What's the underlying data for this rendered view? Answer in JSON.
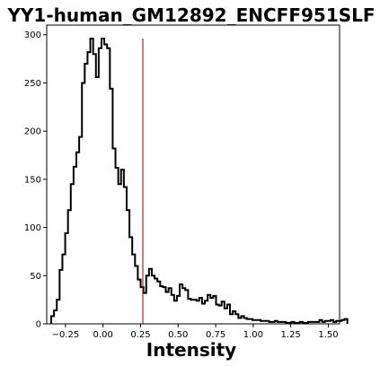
{
  "chart_data": {
    "type": "histogram",
    "title": "YY1-human_GM12892_ENCFF951SLF",
    "xlabel": "Intensity",
    "ylabel": "",
    "xlim": [
      -0.375,
      1.575
    ],
    "ylim": [
      0,
      310
    ],
    "x_ticks": [
      -0.25,
      0.0,
      0.25,
      0.5,
      0.75,
      1.0,
      1.25,
      1.5
    ],
    "x_tick_labels": [
      "−0.25",
      "0.00",
      "0.25",
      "0.50",
      "0.75",
      "1.00",
      "1.25",
      "1.50"
    ],
    "y_ticks": [
      0,
      50,
      100,
      150,
      200,
      250,
      300
    ],
    "y_tick_labels": [
      "0",
      "50",
      "100",
      "150",
      "200",
      "250",
      "300"
    ],
    "grid": false,
    "line_color": "#000000",
    "threshold": {
      "x": 0.265,
      "y_top": 296,
      "color": "#8b0000"
    },
    "bins": {
      "start": -0.345,
      "width": 0.0186,
      "counts": [
        8,
        14,
        25,
        56,
        72,
        94,
        118,
        145,
        163,
        178,
        194,
        250,
        270,
        282,
        296,
        280,
        256,
        286,
        296,
        290,
        286,
        244,
        182,
        162,
        145,
        160,
        142,
        118,
        90,
        72,
        60,
        46,
        38,
        32,
        50,
        57,
        50,
        47,
        44,
        39,
        38,
        33,
        37,
        30,
        24,
        29,
        41,
        37,
        35,
        26,
        25,
        25,
        24,
        27,
        21,
        24,
        30,
        27,
        29,
        20,
        19,
        23,
        16,
        20,
        10,
        13,
        10,
        6,
        8,
        6,
        5,
        5,
        4,
        4,
        4,
        3,
        3,
        3,
        2,
        2,
        3,
        2,
        2,
        2,
        1,
        1,
        2,
        1,
        1,
        2,
        1,
        1,
        2,
        2,
        2,
        2,
        4,
        2,
        3,
        3,
        4,
        2,
        3,
        3,
        4,
        5
      ]
    }
  }
}
